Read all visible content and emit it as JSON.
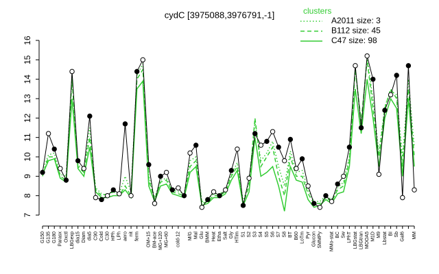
{
  "chart_data": {
    "type": "line",
    "title": "cydC [3975088,3976791,-1]",
    "legend_title": "clusters",
    "legend": "top-right",
    "categories": [
      "G150",
      "G135",
      "G180",
      "Parasx",
      "Oxctl",
      "LBGexp",
      "dia15",
      "Diam",
      "dia5",
      "C90",
      "Cold",
      "C30",
      "HPh",
      "LPh",
      "aero",
      "nit",
      "ferm",
      null,
      "OM+15",
      "BM-ace",
      "MG+120",
      "MG+60",
      null,
      "cold-12",
      null,
      "M/G",
      "Mal",
      "Glu",
      "BMM",
      "Heat",
      "Etha",
      "Salt",
      "Gly",
      "HTim",
      "S1",
      "S2",
      "S3",
      "S4",
      "S5",
      "S6",
      "S7",
      "S8",
      "BT",
      "B60",
      "LoTm",
      "Pyr",
      "Glucon",
      "SMMPy",
      null,
      "MMo-stat",
      "BC",
      "Sw",
      "LPhT",
      "LBGstat",
      "LBGtran",
      "MOOA5",
      "M1D",
      "M9",
      "Lbstat",
      "BI",
      "Sb",
      "Gal6",
      null,
      "MM"
    ],
    "values": [
      9.2,
      11.2,
      10.4,
      9.4,
      8.8,
      14.4,
      9.8,
      9.4,
      12.1,
      7.9,
      7.8,
      8.0,
      8.3,
      8.1,
      11.7,
      8.0,
      14.4,
      15.0,
      9.6,
      7.6,
      9.0,
      9.2,
      8.3,
      8.4,
      8.0,
      10.2,
      10.6,
      7.4,
      7.8,
      8.2,
      8.0,
      8.3,
      9.3,
      10.4,
      7.5,
      8.9,
      11.2,
      10.6,
      10.8,
      11.3,
      10.5,
      9.8,
      10.9,
      9.4,
      9.9,
      8.5,
      7.6,
      7.4,
      8.0,
      7.7,
      8.6,
      9.0,
      10.5,
      14.7,
      11.5,
      15.2,
      14.0,
      9.1,
      12.4,
      13.2,
      14.2,
      7.9,
      14.7,
      8.3
    ],
    "color": "#000000",
    "series": [
      {
        "name": "A2011 size: 3",
        "color": "#33cc33",
        "dash": "dotted",
        "values": [
          9.3,
          10.1,
          10.2,
          9.1,
          9.0,
          14.2,
          9.6,
          9.3,
          11.5,
          8.4,
          8.1,
          8.0,
          8.2,
          8.1,
          9.0,
          8.2,
          14.2,
          14.8,
          9.0,
          7.9,
          8.8,
          8.9,
          8.3,
          8.2,
          8.1,
          9.8,
          10.0,
          7.7,
          7.8,
          8.1,
          8.1,
          8.3,
          9.1,
          9.7,
          7.7,
          8.7,
          11.8,
          9.8,
          10.2,
          10.8,
          9.5,
          8.5,
          10.3,
          9.2,
          9.3,
          8.3,
          7.7,
          7.7,
          8.0,
          7.8,
          8.4,
          8.7,
          10.0,
          14.6,
          11.6,
          15.1,
          13.0,
          10.2,
          12.6,
          13.4,
          13.2,
          10.0,
          14.0,
          10.5
        ]
      },
      {
        "name": "B112 size: 45",
        "color": "#33cc33",
        "dash": "dashed",
        "values": [
          9.0,
          10.0,
          10.0,
          9.0,
          8.8,
          14.0,
          9.5,
          9.2,
          11.0,
          8.3,
          8.0,
          8.1,
          8.2,
          8.0,
          8.5,
          8.0,
          14.0,
          14.5,
          8.8,
          7.8,
          8.7,
          8.8,
          8.2,
          8.1,
          8.0,
          9.5,
          9.8,
          7.6,
          7.7,
          8.0,
          8.0,
          8.2,
          9.0,
          9.5,
          7.6,
          8.5,
          12.0,
          9.5,
          10.0,
          10.5,
          9.0,
          8.0,
          10.0,
          9.0,
          9.0,
          8.1,
          7.6,
          7.6,
          7.9,
          7.7,
          8.3,
          8.5,
          9.8,
          14.5,
          11.8,
          15.0,
          12.5,
          10.0,
          12.5,
          13.5,
          13.0,
          9.5,
          13.5,
          10.0
        ]
      },
      {
        "name": "C47 size: 98",
        "color": "#33cc33",
        "dash": "solid",
        "values": [
          9.1,
          9.8,
          9.9,
          8.9,
          8.7,
          13.0,
          9.4,
          9.0,
          10.5,
          8.2,
          7.9,
          7.9,
          8.0,
          8.0,
          8.3,
          7.9,
          13.5,
          13.9,
          8.5,
          7.7,
          8.5,
          8.6,
          8.1,
          8.0,
          7.9,
          9.2,
          9.5,
          7.5,
          7.6,
          7.9,
          7.9,
          8.1,
          8.8,
          9.3,
          7.5,
          8.2,
          11.0,
          9.0,
          9.2,
          9.5,
          8.5,
          7.2,
          9.5,
          8.8,
          8.7,
          7.8,
          7.4,
          7.5,
          7.8,
          7.6,
          8.1,
          8.2,
          9.5,
          13.5,
          11.2,
          14.0,
          12.0,
          9.5,
          12.0,
          13.0,
          12.5,
          9.0,
          13.0,
          9.5
        ]
      }
    ],
    "ylim": [
      7,
      16
    ],
    "yticks": [
      7,
      8,
      9,
      10,
      11,
      12,
      13,
      14,
      15,
      16
    ]
  }
}
